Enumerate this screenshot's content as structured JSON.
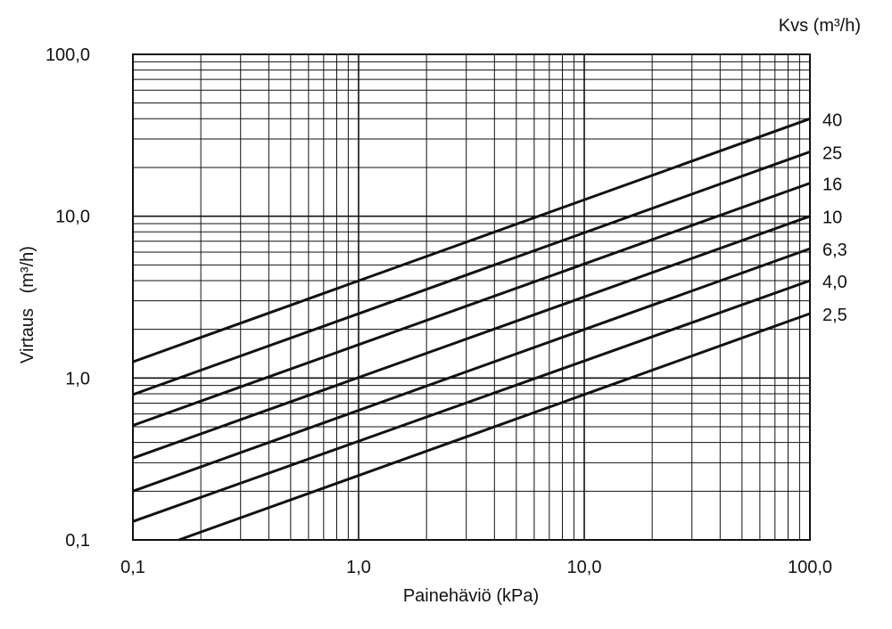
{
  "chart_data": {
    "type": "line",
    "x_scale": "log",
    "y_scale": "log",
    "xlim": [
      0.1,
      100
    ],
    "ylim": [
      0.1,
      100
    ],
    "grid": true,
    "xlabel": "Painehäviö (kPa)",
    "ylabel": "Virtaus   (m³/h)",
    "legend_title": "Kvs (m³/h)",
    "x_tick_labels": [
      "0,1",
      "1,0",
      "10,0",
      "100,0"
    ],
    "y_tick_labels": [
      "0,1",
      "1,0",
      "10,0",
      "100,0"
    ],
    "x_ticks": [
      0.1,
      1,
      10,
      100
    ],
    "y_ticks": [
      0.1,
      1,
      10,
      100
    ],
    "series": [
      {
        "name": "40",
        "kvs": 40,
        "x": [
          0.1,
          100
        ],
        "y": [
          1.26,
          40.0
        ]
      },
      {
        "name": "25",
        "kvs": 25,
        "x": [
          0.1,
          100
        ],
        "y": [
          0.79,
          25.0
        ]
      },
      {
        "name": "16",
        "kvs": 16,
        "x": [
          0.1,
          100
        ],
        "y": [
          0.51,
          16.0
        ]
      },
      {
        "name": "10",
        "kvs": 10,
        "x": [
          0.1,
          100
        ],
        "y": [
          0.32,
          10.0
        ]
      },
      {
        "name": "6,3",
        "kvs": 6.3,
        "x": [
          0.1,
          100
        ],
        "y": [
          0.2,
          6.3
        ]
      },
      {
        "name": "4,0",
        "kvs": 4.0,
        "x": [
          0.1,
          100
        ],
        "y": [
          0.13,
          4.0
        ]
      },
      {
        "name": "2,5",
        "kvs": 2.5,
        "x": [
          0.16,
          100
        ],
        "y": [
          0.1,
          2.5
        ]
      }
    ]
  }
}
